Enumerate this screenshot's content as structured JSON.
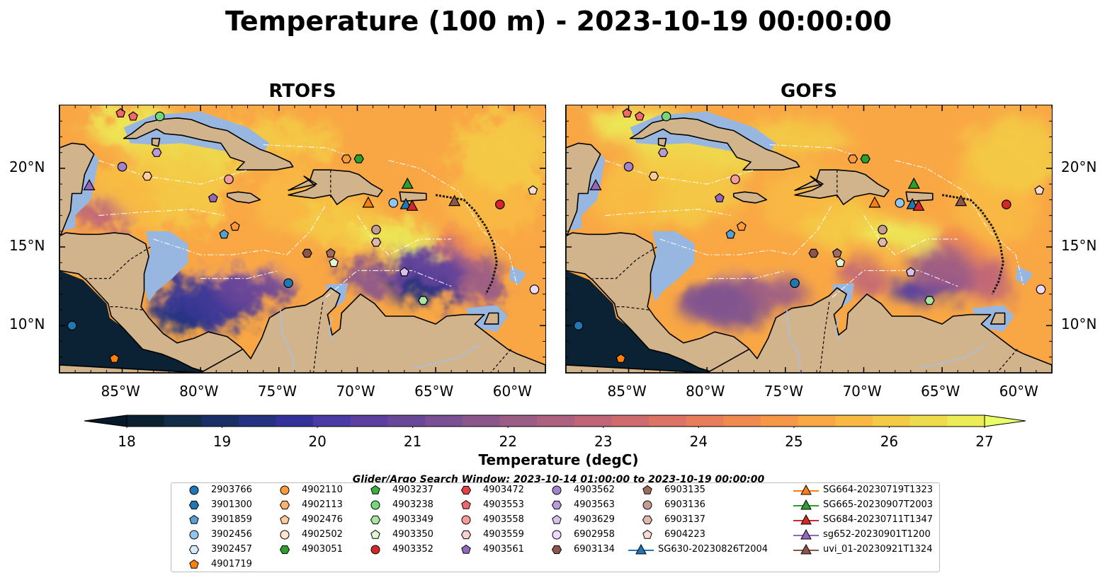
{
  "title": "Temperature (100 m) - 2023-10-19 00:00:00",
  "panels": [
    {
      "title": "RTOFS",
      "variant": "rtofs"
    },
    {
      "title": "GOFS",
      "variant": "gofs"
    }
  ],
  "axes": {
    "lon_ticks": [
      {
        "value": -85,
        "label": "85°W"
      },
      {
        "value": -80,
        "label": "80°W"
      },
      {
        "value": -75,
        "label": "75°W"
      },
      {
        "value": -70,
        "label": "70°W"
      },
      {
        "value": -65,
        "label": "65°W"
      },
      {
        "value": -60,
        "label": "60°W"
      }
    ],
    "lat_ticks": [
      {
        "value": 20,
        "label": "20°N"
      },
      {
        "value": 15,
        "label": "15°N"
      },
      {
        "value": 10,
        "label": "10°N"
      }
    ],
    "lon_range": [
      -89,
      -58
    ],
    "lat_range": [
      7,
      24
    ]
  },
  "colorbar": {
    "title": "Temperature (degC)",
    "min": 18,
    "max": 27,
    "ticks": [
      {
        "value": 18,
        "label": "18"
      },
      {
        "value": 19,
        "label": "19"
      },
      {
        "value": 20,
        "label": "20"
      },
      {
        "value": 21,
        "label": "21"
      },
      {
        "value": 22,
        "label": "22"
      },
      {
        "value": 23,
        "label": "23"
      },
      {
        "value": 24,
        "label": "24"
      },
      {
        "value": 25,
        "label": "25"
      },
      {
        "value": 26,
        "label": "26"
      },
      {
        "value": 27,
        "label": "27"
      }
    ],
    "colors": [
      "#0b2132",
      "#122b47",
      "#1a2f66",
      "#243281",
      "#33329a",
      "#4a3aa3",
      "#5c3f9f",
      "#6b4799",
      "#7a4f93",
      "#8a568c",
      "#9b5c86",
      "#ad607f",
      "#c06578",
      "#cf6b6e",
      "#dc7365",
      "#e77d5a",
      "#f08a50",
      "#f69748",
      "#f9a744",
      "#f8b942",
      "#f4cb45",
      "#eedc4d",
      "#ecec57"
    ],
    "under_color": "#07182a",
    "over_color": "#eaff66"
  },
  "search_window": "Glider/Argo Search Window: 2023-10-14 01:00:00 to 2023-10-19 00:00:00",
  "colors": {
    "land": "#d2b48c",
    "shallow": "#97b7e0",
    "pacific": "#0a2233"
  },
  "legend": {
    "columns": [
      [
        {
          "label": "2903766",
          "shape": "circle",
          "color": "#1f77b4"
        },
        {
          "label": "3901300",
          "shape": "hexagon",
          "color": "#1f77b4"
        },
        {
          "label": "3901859",
          "shape": "pentagon",
          "color": "#5a9fd4"
        },
        {
          "label": "3902456",
          "shape": "circle",
          "color": "#8ec6ef"
        },
        {
          "label": "3902457",
          "shape": "hexagon",
          "color": "#d0ecfb"
        },
        {
          "label": "4901719",
          "shape": "pentagon",
          "color": "#ff7f0e"
        }
      ],
      [
        {
          "label": "4902110",
          "shape": "circle",
          "color": "#ff9a3c"
        },
        {
          "label": "4902113",
          "shape": "hexagon",
          "color": "#ffb26b"
        },
        {
          "label": "4902476",
          "shape": "pentagon",
          "color": "#ffcc99"
        },
        {
          "label": "4902502",
          "shape": "circle",
          "color": "#ffe6cc"
        },
        {
          "label": "4903051",
          "shape": "hexagon",
          "color": "#2ca02c"
        }
      ],
      [
        {
          "label": "4903237",
          "shape": "pentagon",
          "color": "#3cb03c"
        },
        {
          "label": "4903238",
          "shape": "circle",
          "color": "#77d677"
        },
        {
          "label": "4903349",
          "shape": "hexagon",
          "color": "#a8e6a0"
        },
        {
          "label": "4903350",
          "shape": "pentagon",
          "color": "#dff7d4"
        },
        {
          "label": "4903352",
          "shape": "circle",
          "color": "#d62728"
        }
      ],
      [
        {
          "label": "4903472",
          "shape": "hexagon",
          "color": "#e34040"
        },
        {
          "label": "4903553",
          "shape": "pentagon",
          "color": "#f06868"
        },
        {
          "label": "4903558",
          "shape": "circle",
          "color": "#f59b9b"
        },
        {
          "label": "4903559",
          "shape": "hexagon",
          "color": "#fbd0d0"
        },
        {
          "label": "4903561",
          "shape": "pentagon",
          "color": "#9467bd"
        }
      ],
      [
        {
          "label": "4903562",
          "shape": "circle",
          "color": "#a481cc"
        },
        {
          "label": "4903563",
          "shape": "hexagon",
          "color": "#bb9ad9"
        },
        {
          "label": "4903629",
          "shape": "pentagon",
          "color": "#d7c2ee"
        },
        {
          "label": "6902958",
          "shape": "circle",
          "color": "#efd9fb"
        },
        {
          "label": "6903134",
          "shape": "hexagon",
          "color": "#8c564b"
        }
      ],
      [
        {
          "label": "6903135",
          "shape": "pentagon",
          "color": "#a06c60"
        },
        {
          "label": "6903136",
          "shape": "circle",
          "color": "#c49c94"
        },
        {
          "label": "6903137",
          "shape": "hexagon",
          "color": "#e0b8ae"
        },
        {
          "label": "6904223",
          "shape": "pentagon",
          "color": "#f5ddd4"
        }
      ]
    ],
    "gliders": [
      {
        "label": "SG630-20230826T2004",
        "color": "#1f77b4"
      },
      {
        "label": "SG664-20230719T1323",
        "color": "#ff7f0e"
      },
      {
        "label": "SG665-20230907T2003",
        "color": "#2ca02c"
      },
      {
        "label": "SG684-20230711T1347",
        "color": "#d62728"
      },
      {
        "label": "sg652-20230901T1200",
        "color": "#9467bd"
      },
      {
        "label": "uvi_01-20230921T1324",
        "color": "#8c564b"
      }
    ]
  },
  "markers": [
    {
      "lon": -85.1,
      "lat": 23.5,
      "shape": "pentagon",
      "color": "#f06868"
    },
    {
      "lon": -84.3,
      "lat": 23.3,
      "shape": "pentagon",
      "color": "#f06868"
    },
    {
      "lon": -82.6,
      "lat": 23.3,
      "shape": "circle",
      "color": "#77d677"
    },
    {
      "lon": -82.8,
      "lat": 21.0,
      "shape": "hexagon",
      "color": "#bb9ad9"
    },
    {
      "lon": -85.0,
      "lat": 20.1,
      "shape": "circle",
      "color": "#a481cc"
    },
    {
      "lon": -83.4,
      "lat": 19.5,
      "shape": "hexagon",
      "color": "#ffcc99"
    },
    {
      "lon": -87.1,
      "lat": 18.9,
      "shape": "triangle",
      "color": "#9467bd"
    },
    {
      "lon": -79.2,
      "lat": 18.1,
      "shape": "pentagon",
      "color": "#9467bd"
    },
    {
      "lon": -78.2,
      "lat": 19.3,
      "shape": "circle",
      "color": "#f59b9b"
    },
    {
      "lon": -77.8,
      "lat": 16.3,
      "shape": "pentagon",
      "color": "#ff9a3c"
    },
    {
      "lon": -78.5,
      "lat": 15.8,
      "shape": "pentagon",
      "color": "#5a9fd4"
    },
    {
      "lon": -70.7,
      "lat": 20.6,
      "shape": "hexagon",
      "color": "#ff9a3c"
    },
    {
      "lon": -69.9,
      "lat": 20.6,
      "shape": "hexagon",
      "color": "#2ca02c"
    },
    {
      "lon": -66.8,
      "lat": 19.0,
      "shape": "triangle",
      "color": "#2ca02c"
    },
    {
      "lon": -69.3,
      "lat": 17.8,
      "shape": "triangle",
      "color": "#ff7f0e"
    },
    {
      "lon": -67.7,
      "lat": 17.8,
      "shape": "circle",
      "color": "#8ec6ef"
    },
    {
      "lon": -66.9,
      "lat": 17.7,
      "shape": "triangle",
      "color": "#1f77b4"
    },
    {
      "lon": -66.5,
      "lat": 17.6,
      "shape": "triangle",
      "color": "#d62728"
    },
    {
      "lon": -63.8,
      "lat": 17.9,
      "shape": "triangle",
      "color": "#8c564b"
    },
    {
      "lon": -60.9,
      "lat": 17.7,
      "shape": "circle",
      "color": "#d62728"
    },
    {
      "lon": -58.8,
      "lat": 18.6,
      "shape": "pentagon",
      "color": "#f5ddd4"
    },
    {
      "lon": -68.8,
      "lat": 16.1,
      "shape": "circle",
      "color": "#c49c94"
    },
    {
      "lon": -68.8,
      "lat": 15.3,
      "shape": "hexagon",
      "color": "#e0b8ae"
    },
    {
      "lon": -73.2,
      "lat": 14.6,
      "shape": "hexagon",
      "color": "#8c564b"
    },
    {
      "lon": -71.7,
      "lat": 14.6,
      "shape": "pentagon",
      "color": "#a06c60"
    },
    {
      "lon": -71.5,
      "lat": 14.0,
      "shape": "pentagon",
      "color": "#dff7d4"
    },
    {
      "lon": -67.0,
      "lat": 13.4,
      "shape": "pentagon",
      "color": "#d7c2ee"
    },
    {
      "lon": -74.4,
      "lat": 12.7,
      "shape": "circle",
      "color": "#1f77b4"
    },
    {
      "lon": -65.8,
      "lat": 11.6,
      "shape": "hexagon",
      "color": "#a8e6a0"
    },
    {
      "lon": -58.7,
      "lat": 12.3,
      "shape": "circle",
      "color": "#efd9fb"
    },
    {
      "lon": -88.2,
      "lat": 10.0,
      "shape": "circle",
      "color": "#1f77b4"
    },
    {
      "lon": -85.5,
      "lat": 7.9,
      "shape": "pentagon",
      "color": "#ff7f0e"
    }
  ]
}
